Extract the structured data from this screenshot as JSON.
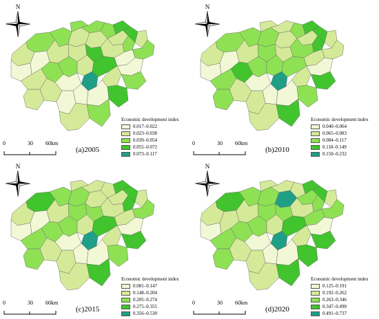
{
  "north_label": "N",
  "scale": {
    "labels": [
      "0",
      "30",
      "60km"
    ]
  },
  "legend_title": "Economic development index",
  "palette": [
    "#f2f8d6",
    "#d5ea98",
    "#8fe154",
    "#41c42e",
    "#1f9f85"
  ],
  "panels": [
    {
      "label": "(a)2005",
      "classes": [
        "0.017–0.022",
        "0.023–0.038",
        "0.039–0.054",
        "0.055–0.072",
        "0.073–0.117"
      ],
      "county_classes": [
        2,
        2,
        1,
        2,
        2,
        2,
        1,
        1,
        3,
        3,
        2,
        1,
        2,
        1,
        0,
        0,
        1,
        1,
        3,
        1,
        0,
        1,
        2,
        2,
        1,
        4,
        3,
        0,
        1,
        0,
        1,
        2,
        1,
        0,
        0,
        0,
        3,
        1,
        2
      ]
    },
    {
      "label": "(b)2010",
      "classes": [
        "0.040–0.064",
        "0.065–0.083",
        "0.084–0.117",
        "0.118–0.149",
        "0.150–0.232"
      ],
      "county_classes": [
        2,
        2,
        2,
        1,
        1,
        2,
        1,
        1,
        3,
        3,
        3,
        1,
        1,
        1,
        0,
        0,
        1,
        2,
        1,
        2,
        1,
        2,
        3,
        2,
        2,
        4,
        2,
        0,
        1,
        0,
        1,
        3,
        2,
        1,
        0,
        0,
        2,
        1,
        3
      ]
    },
    {
      "label": "(c)2015",
      "classes": [
        "0.081–0.147",
        "0.148–0.204",
        "0.205–0.274",
        "0.275–0.355",
        "0.356–0.530"
      ],
      "county_classes": [
        3,
        2,
        2,
        1,
        1,
        1,
        1,
        1,
        3,
        3,
        3,
        1,
        2,
        1,
        0,
        0,
        1,
        2,
        2,
        1,
        1,
        2,
        2,
        2,
        1,
        4,
        3,
        0,
        1,
        0,
        1,
        3,
        2,
        1,
        0,
        0,
        2,
        1,
        3
      ]
    },
    {
      "label": "(d)2020",
      "classes": [
        "0.125–0.191",
        "0.192–0.262",
        "0.263–0.346",
        "0.347–0.490",
        "0.491–0.737"
      ],
      "county_classes": [
        3,
        2,
        2,
        1,
        1,
        1,
        4,
        2,
        3,
        3,
        2,
        1,
        2,
        1,
        0,
        1,
        1,
        2,
        2,
        1,
        2,
        2,
        2,
        2,
        1,
        4,
        3,
        0,
        1,
        0,
        1,
        3,
        2,
        1,
        0,
        0,
        3,
        1,
        3
      ]
    }
  ]
}
